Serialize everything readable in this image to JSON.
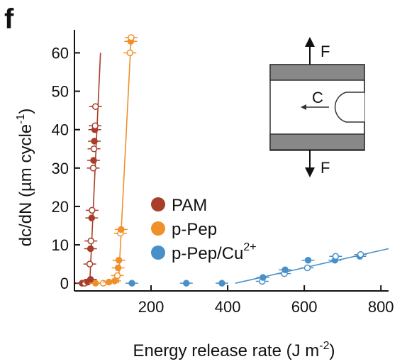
{
  "panel_label": "f",
  "colors": {
    "PAM": "#a83d2a",
    "p-Pep": "#f0902a",
    "p-Pep/Cu2+": "#4a90c8",
    "axis": "#111111",
    "inset_gray": "#888888"
  },
  "inset": {
    "force_top": "F",
    "force_bottom": "F",
    "crack": "C"
  },
  "chart_data": {
    "type": "scatter",
    "title": "",
    "xlabel": "Energy release rate (J m⁻²)",
    "xlabel_main": "Energy release rate (J m",
    "xlabel_sup": "-2",
    "xlabel_end": ")",
    "ylabel": "dc/dN (µm cycle⁻¹)",
    "ylabel_main": "dc/dN (µm cycle",
    "ylabel_sup": "-1",
    "ylabel_end": ")",
    "xlim": [
      0,
      820
    ],
    "ylim": [
      -2,
      66
    ],
    "xticks": [
      200,
      400,
      600,
      800
    ],
    "yticks": [
      0,
      10,
      20,
      30,
      40,
      50,
      60
    ],
    "legend_position": "center",
    "series": [
      {
        "name": "PAM",
        "legend_main": "PAM",
        "legend_sup": "",
        "points": [
          {
            "x": 20,
            "y": 0,
            "filled": true
          },
          {
            "x": 27,
            "y": 0,
            "filled": false
          },
          {
            "x": 35,
            "y": 0.3,
            "filled": true
          },
          {
            "x": 42,
            "y": 1,
            "filled": true
          },
          {
            "x": 40,
            "y": 5,
            "filled": false
          },
          {
            "x": 42,
            "y": 9,
            "filled": true
          },
          {
            "x": 43,
            "y": 11,
            "filled": false
          },
          {
            "x": 45,
            "y": 17,
            "filled": true
          },
          {
            "x": 46,
            "y": 19,
            "filled": false
          },
          {
            "x": 49,
            "y": 30,
            "filled": false
          },
          {
            "x": 50,
            "y": 32,
            "filled": true
          },
          {
            "x": 51,
            "y": 35,
            "filled": false
          },
          {
            "x": 52,
            "y": 37,
            "filled": true
          },
          {
            "x": 53,
            "y": 40,
            "filled": true
          },
          {
            "x": 54,
            "y": 41,
            "filled": false
          },
          {
            "x": 55,
            "y": 46,
            "filled": false
          }
        ],
        "fit_line": [
          [
            40,
            0
          ],
          [
            68,
            60
          ]
        ]
      },
      {
        "name": "p-Pep",
        "legend_main": "p-Pep",
        "legend_sup": "",
        "points": [
          {
            "x": 55,
            "y": 0,
            "filled": true
          },
          {
            "x": 75,
            "y": 0,
            "filled": false
          },
          {
            "x": 90,
            "y": 0.3,
            "filled": true
          },
          {
            "x": 105,
            "y": 0.6,
            "filled": true
          },
          {
            "x": 112,
            "y": 2,
            "filled": false
          },
          {
            "x": 114,
            "y": 4,
            "filled": true
          },
          {
            "x": 116,
            "y": 6,
            "filled": true
          },
          {
            "x": 120,
            "y": 13,
            "filled": false
          },
          {
            "x": 122,
            "y": 14,
            "filled": true
          },
          {
            "x": 145,
            "y": 60,
            "filled": false
          },
          {
            "x": 147,
            "y": 63,
            "filled": true
          },
          {
            "x": 148,
            "y": 64,
            "filled": false
          }
        ],
        "fit_line": [
          [
            115,
            0
          ],
          [
            148,
            64
          ]
        ]
      },
      {
        "name": "p-Pep/Cu2+",
        "legend_main": "p-Pep/Cu",
        "legend_sup": "2+",
        "points": [
          {
            "x": 150,
            "y": 0,
            "filled": true
          },
          {
            "x": 292,
            "y": 0,
            "filled": true
          },
          {
            "x": 385,
            "y": 0,
            "filled": true
          },
          {
            "x": 490,
            "y": 0.5,
            "filled": false
          },
          {
            "x": 492,
            "y": 1.5,
            "filled": true
          },
          {
            "x": 548,
            "y": 2.5,
            "filled": false
          },
          {
            "x": 550,
            "y": 3.5,
            "filled": true
          },
          {
            "x": 608,
            "y": 4,
            "filled": false
          },
          {
            "x": 610,
            "y": 6,
            "filled": true
          },
          {
            "x": 680,
            "y": 6,
            "filled": true
          },
          {
            "x": 682,
            "y": 7,
            "filled": false
          },
          {
            "x": 745,
            "y": 7,
            "filled": true
          },
          {
            "x": 747,
            "y": 7.5,
            "filled": false
          }
        ],
        "fit_line": [
          [
            420,
            0
          ],
          [
            820,
            9
          ]
        ]
      }
    ]
  }
}
